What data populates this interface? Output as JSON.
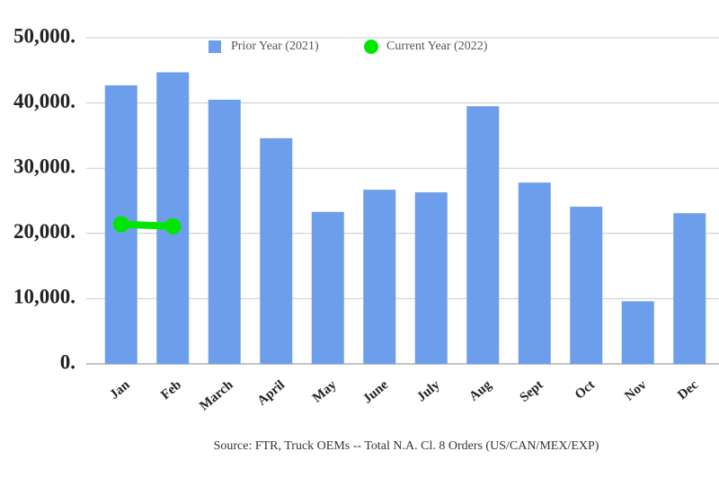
{
  "chart_data": {
    "type": "bar",
    "categories": [
      "Jan",
      "Feb",
      "March",
      "April",
      "May",
      "June",
      "July",
      "Aug",
      "Sept",
      "Oct",
      "Nov",
      "Dec"
    ],
    "series": [
      {
        "name": "Prior Year (2021)",
        "type": "bar",
        "color": "#6d9eeb",
        "values": [
          42700,
          44700,
          40500,
          34600,
          23300,
          26700,
          26300,
          39500,
          27800,
          24100,
          9600,
          23100
        ]
      },
      {
        "name": "Current Year (2022)",
        "type": "line",
        "color": "#00e600",
        "values": [
          21400,
          21100,
          null,
          null,
          null,
          null,
          null,
          null,
          null,
          null,
          null,
          null
        ]
      }
    ],
    "ylim": [
      0,
      50000
    ],
    "yticks": [
      {
        "value": 0,
        "label": "0."
      },
      {
        "value": 10000,
        "label": "10,000."
      },
      {
        "value": 20000,
        "label": "20,000."
      },
      {
        "value": 30000,
        "label": "30,000."
      },
      {
        "value": 40000,
        "label": "40,000."
      },
      {
        "value": 50000,
        "label": "50,000."
      }
    ],
    "grid": true,
    "legend": "top",
    "source": "Source: FTR, Truck OEMs -- Total N.A. Cl. 8 Orders (US/CAN/MEX/EXP)"
  }
}
